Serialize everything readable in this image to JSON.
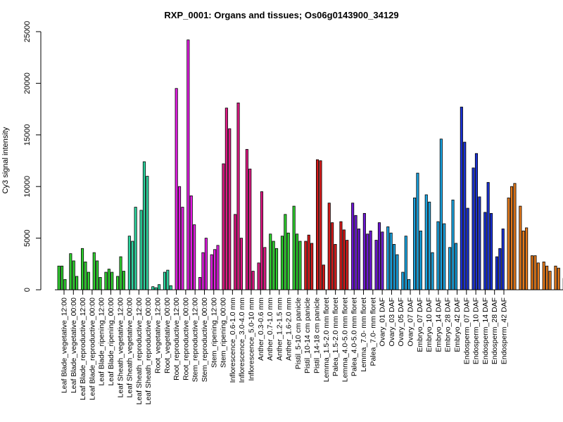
{
  "chart_data": {
    "type": "bar",
    "title": "RXP_0001: Organs and tissues; Os06g0143900_34129",
    "xlabel": "",
    "ylabel": "Cy3 signal intensity",
    "ylim": [
      0,
      25000
    ],
    "yticks": [
      0,
      5000,
      10000,
      15000,
      20000,
      25000
    ],
    "grid": false,
    "legend": "none",
    "xtick_labels": [
      "Leaf Blade_vegetative_12:00",
      "Leaf Blade_vegetative_00:00",
      "Leaf Blade_reproductive_12:00",
      "Leaf Blade_reproductive_00:00",
      "Leaf Blade_ripening_12:00",
      "Leaf Blade_ripening_00:00",
      "Leaf Sheath_vegetative_12:00",
      "Leaf Sheath_vegetative_00:00",
      "Leaf Sheath_reproductive_12:00",
      "Leaf Sheath_reproductive_00:00",
      "Root_vegetative_12:00",
      "Root_vegetative_00:00",
      "Root_reproductive_12:00",
      "Root_reproductive_00:00",
      "Stem_reproductive_12:00",
      "Stem_reproductive_00:00",
      "Stem_ripening_12:00",
      "Stem_ripening_00:00",
      "Inflorescence_0.6-1.0 mm",
      "Inflorescence_3.0-4.0 mm",
      "Inflorescence_5.0-10 mm",
      "Anther_0.3-0.6 mm",
      "Anther_0.7-1.0 mm",
      "Anther_1.2-1.5 mm",
      "Anther_1.6-2.0 mm",
      "Pistil_5-10 cm panicle",
      "Pistil_10-14 cm panicle",
      "Pistil_14-18 cm panicle",
      "Lemma_1.5-2.0 mm floret",
      "Palea_1.5-2.0 mm floret",
      "Lemma_4.0-5.0 mm floret",
      "Palea_4.0-5.0 mm floret",
      "Lemma_7.0- mm floret",
      "Palea_7.0- mm floret",
      "Ovary_01 DAF",
      "Ovary_03 DAF",
      "Ovary_05 DAF",
      "Ovary_07 DAF",
      "Embryo_07 DAF",
      "Embryo_10 DAF",
      "Embryo_14 DAF",
      "Embryo_28 DAF",
      "Embryo_42 DAF",
      "Endosperm_07 DAF",
      "Endosperm_10 DAF",
      "Endosperm_14 DAF",
      "Endosperm_28 DAF",
      "Endosperm_42 DAF"
    ],
    "groups": [
      {
        "color": "#2fd22f",
        "values": [
          2300,
          2300,
          1000
        ]
      },
      {
        "color": "#2fd22f",
        "values": [
          3500,
          2800,
          1300
        ]
      },
      {
        "color": "#2fd22f",
        "values": [
          4000,
          2700,
          1700
        ]
      },
      {
        "color": "#2fd22f",
        "values": [
          3600,
          2800,
          1200
        ]
      },
      {
        "color": "#2fd22f",
        "values": [
          1700,
          2000,
          1700
        ]
      },
      {
        "color": "#2fd22f",
        "values": [
          1300,
          3200,
          1800
        ]
      },
      {
        "color": "#2ed7a0",
        "values": [
          5200,
          4700,
          8000
        ]
      },
      {
        "color": "#2ed7a0",
        "values": [
          7700,
          12400,
          11000
        ]
      },
      {
        "color": "#2ed7a0",
        "values": [
          300,
          200,
          500
        ]
      },
      {
        "color": "#2ed7a0",
        "values": [
          1700,
          1900,
          400
        ]
      },
      {
        "color": "#e21de2",
        "values": [
          19500,
          10000,
          8000
        ]
      },
      {
        "color": "#e21de2",
        "values": [
          24200,
          9100,
          6300
        ]
      },
      {
        "color": "#e21de2",
        "values": [
          1200,
          3600,
          5000
        ]
      },
      {
        "color": "#e21de2",
        "values": [
          3400,
          3900,
          4300
        ]
      },
      {
        "color": "#e01a85",
        "values": [
          12200,
          17600,
          15600
        ]
      },
      {
        "color": "#e01a85",
        "values": [
          7300,
          18100,
          5000
        ]
      },
      {
        "color": "#e01a85",
        "values": [
          13600,
          11700,
          1800
        ]
      },
      {
        "color": "#e01a85",
        "values": [
          2600,
          9500,
          4100
        ]
      },
      {
        "color": "#2fd22f",
        "values": [
          5400,
          4700,
          4000
        ]
      },
      {
        "color": "#2fd22f",
        "values": [
          5200,
          7300,
          5500
        ]
      },
      {
        "color": "#2fd22f",
        "values": [
          8100,
          5400,
          4700
        ]
      },
      {
        "color": "#d81b1b",
        "values": [
          4700,
          5300,
          4500
        ]
      },
      {
        "color": "#d81b1b",
        "values": [
          12600,
          12500,
          2400
        ]
      },
      {
        "color": "#d81b1b",
        "values": [
          8400,
          6500,
          4400
        ]
      },
      {
        "color": "#d81b1b",
        "values": [
          6600,
          5800,
          4800
        ]
      },
      {
        "color": "#6e18d6",
        "values": [
          8400,
          7200,
          5900
        ]
      },
      {
        "color": "#6e18d6",
        "values": [
          7400,
          5400,
          5700
        ]
      },
      {
        "color": "#6e18d6",
        "values": [
          4800,
          6500,
          5600
        ]
      },
      {
        "color": "#1aa3e0",
        "values": [
          6100,
          5500,
          4400,
          3400
        ]
      },
      {
        "color": "#1aa3e0",
        "values": [
          1700,
          5200,
          1000
        ]
      },
      {
        "color": "#1aa3e0",
        "values": [
          8900,
          11300,
          5700
        ]
      },
      {
        "color": "#1aa3e0",
        "values": [
          9200,
          8500,
          3600
        ]
      },
      {
        "color": "#1aa3e0",
        "values": [
          6600,
          14600,
          6400
        ]
      },
      {
        "color": "#1aa3e0",
        "values": [
          4100,
          8700,
          4500
        ]
      },
      {
        "color": "#1a32d6",
        "values": [
          17700,
          14300,
          7900
        ]
      },
      {
        "color": "#1a32d6",
        "values": [
          11800,
          13200,
          9000
        ]
      },
      {
        "color": "#1a32d6",
        "values": [
          7500,
          10400,
          7400
        ]
      },
      {
        "color": "#1a32d6",
        "values": [
          3200,
          4000,
          5900
        ]
      },
      {
        "color": "#e77a1a",
        "values": [
          8900,
          10000,
          10300
        ]
      },
      {
        "color": "#e77a1a",
        "values": [
          8100,
          5700,
          6000
        ]
      },
      {
        "color": "#e77a1a",
        "values": [
          3300,
          3300,
          2600
        ]
      },
      {
        "color": "#e77a1a",
        "values": [
          2700,
          2300,
          1800
        ]
      },
      {
        "color": "#e77a1a",
        "values": [
          2300,
          2100
        ]
      },
      {
        "color": "#d9e51e",
        "values": [
          1100,
          1000,
          1100
        ]
      },
      {
        "color": "#d9e51e",
        "values": [
          700,
          800,
          700
        ]
      },
      {
        "color": "#d9e51e",
        "values": [
          600,
          600,
          500
        ]
      },
      {
        "color": "#d9e51e",
        "values": [
          200,
          300,
          200
        ]
      },
      {
        "color": "#d9e51e",
        "values": [
          600,
          900,
          800
        ]
      }
    ]
  }
}
